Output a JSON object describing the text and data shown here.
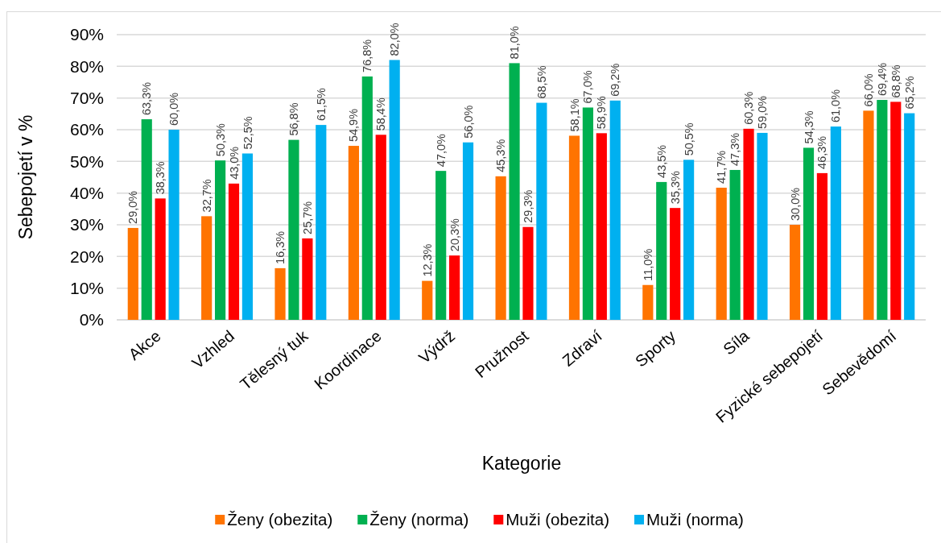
{
  "chart_data": {
    "type": "bar",
    "xlabel": "Kategorie",
    "ylabel": "Sebepojetí v %",
    "categories": [
      "Akce",
      "Vzhled",
      "Tělesný tuk",
      "Koordinace",
      "Výdrž",
      "Pružnost",
      "Zdraví",
      "Sporty",
      "Síla",
      "Fyzické sebepojetí",
      "Sebevědomí"
    ],
    "series": [
      {
        "name": "Ženy (obezita)",
        "color": "#ff7400",
        "values": [
          29.0,
          32.7,
          16.3,
          54.9,
          12.3,
          45.3,
          58.1,
          11.0,
          41.7,
          30.0,
          66.0
        ],
        "value_labels": [
          "29,0%",
          "32,7%",
          "16,3%",
          "54,9%",
          "12,3%",
          "45,3%",
          "58,1%",
          "11,0%",
          "41,7%",
          "30,0%",
          "66,0%"
        ]
      },
      {
        "name": "Ženy (norma)",
        "color": "#00b050",
        "values": [
          63.3,
          50.3,
          56.8,
          76.8,
          47.0,
          81.0,
          67.0,
          43.5,
          47.3,
          54.3,
          69.4
        ],
        "value_labels": [
          "63,3%",
          "50,3%",
          "56,8%",
          "76,8%",
          "47,0%",
          "81,0%",
          "67,0%",
          "43,5%",
          "47,3%",
          "54,3%",
          "69,4%"
        ]
      },
      {
        "name": "Muži (obezita)",
        "color": "#ff0000",
        "values": [
          38.3,
          43.0,
          25.7,
          58.4,
          20.3,
          29.3,
          58.9,
          35.3,
          60.3,
          46.3,
          68.8
        ],
        "value_labels": [
          "38,3%",
          "43,0%",
          "25,7%",
          "58,4%",
          "20,3%",
          "29,3%",
          "58,9%",
          "35,3%",
          "60,3%",
          "46,3%",
          "68,8%"
        ]
      },
      {
        "name": "Muži (norma)",
        "color": "#00b0f0",
        "values": [
          60.0,
          52.5,
          61.5,
          82.0,
          56.0,
          68.5,
          69.2,
          50.5,
          59.0,
          61.0,
          65.2
        ],
        "value_labels": [
          "60,0%",
          "52,5%",
          "61,5%",
          "82,0%",
          "56,0%",
          "68,5%",
          "69,2%",
          "50,5%",
          "59,0%",
          "61,0%",
          "65,2%"
        ]
      }
    ],
    "ylim": [
      0,
      90
    ],
    "yticks": [
      {
        "value": 0,
        "label": "0%"
      },
      {
        "value": 10,
        "label": "10%"
      },
      {
        "value": 20,
        "label": "20%"
      },
      {
        "value": 30,
        "label": "30%"
      },
      {
        "value": 40,
        "label": "40%"
      },
      {
        "value": 50,
        "label": "50%"
      },
      {
        "value": 60,
        "label": "60%"
      },
      {
        "value": 70,
        "label": "70%"
      },
      {
        "value": 80,
        "label": "80%"
      },
      {
        "value": 90,
        "label": "90%"
      }
    ],
    "grid": "y",
    "legend": "bottom"
  }
}
